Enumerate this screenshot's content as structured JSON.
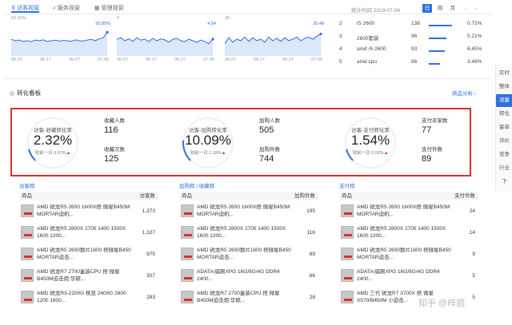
{
  "tabs": [
    {
      "label": "访客视窗",
      "icon": "funnel-icon"
    },
    {
      "label": "服务视窗",
      "icon": "chat-icon"
    },
    {
      "label": "管理视窗",
      "icon": "grid-icon"
    }
  ],
  "header": {
    "stat_time": "统计时间 2019-07-06",
    "periods": [
      "日",
      "周",
      "月"
    ],
    "active_period": "日"
  },
  "mini_charts": [
    {
      "top_label": "60.00%",
      "peak_label": "50.85%",
      "x_ticks": [
        "06-07",
        "06-17",
        "06-27",
        "07-06"
      ],
      "line": [
        0.55,
        0.5,
        0.52,
        0.48,
        0.5,
        0.47,
        0.52,
        0.5,
        0.53,
        0.48,
        0.5,
        0.52,
        0.49,
        0.51,
        0.5,
        0.48,
        0.53,
        0.5,
        0.49,
        0.52,
        0.55,
        0.5,
        0.56,
        0.6,
        0.78
      ]
    },
    {
      "top_label": "6",
      "peak_label": "4.54",
      "x_ticks": [
        "06-07",
        "06-17",
        "06-27",
        "07-06"
      ],
      "line": [
        0.55,
        0.6,
        0.5,
        0.56,
        0.48,
        0.6,
        0.52,
        0.55,
        0.47,
        0.58,
        0.5,
        0.56,
        0.53,
        0.45,
        0.55,
        0.58,
        0.5,
        0.47,
        0.55,
        0.5,
        0.45,
        0.52,
        0.48,
        0.4,
        0.55
      ]
    },
    {
      "top_label": "30",
      "peak_label": "20.48",
      "x_ticks": [
        "06-07",
        "06-17",
        "06-27",
        "07-06"
      ],
      "line": [
        0.4,
        0.6,
        0.45,
        0.55,
        0.5,
        0.62,
        0.48,
        0.6,
        0.5,
        0.55,
        0.45,
        0.62,
        0.5,
        0.58,
        0.48,
        0.6,
        0.5,
        0.55,
        0.62,
        0.5,
        0.58,
        0.62,
        0.55,
        0.65,
        0.72
      ]
    }
  ],
  "ranking": [
    {
      "rank": "2",
      "name": "r5 2600",
      "count": "138",
      "share": "0.72%",
      "fill": 0.72
    },
    {
      "rank": "3",
      "name": "2600套装",
      "count": "96",
      "share": "5.21%",
      "fill": 0.55
    },
    {
      "rank": "4",
      "name": "amd r5 2600",
      "count": "93",
      "share": "6.45%",
      "fill": 0.5
    },
    {
      "rank": "5",
      "name": "amd cpu",
      "count": "86",
      "share": "3.49%",
      "fill": 0.35
    }
  ],
  "section": {
    "title": "转化看板",
    "link": "商品分析 ›"
  },
  "gauges": [
    {
      "label": "访客-收藏转化率",
      "value": "2.32%",
      "sub": "较前一日 0.07%",
      "arrow": "▲",
      "fill": 0.0232,
      "metrics": [
        {
          "label": "收藏人数",
          "value": "116"
        },
        {
          "label": "收藏次数",
          "value": "125"
        }
      ]
    },
    {
      "label": "访客-加购转化率",
      "value": "10.09%",
      "sub": "较前一日 1.18%",
      "arrow": "▲",
      "fill": 0.1009,
      "metrics": [
        {
          "label": "加购人数",
          "value": "505"
        },
        {
          "label": "加购件数",
          "value": "744"
        }
      ]
    },
    {
      "label": "访客-支付转化率",
      "value": "1.54%",
      "sub": "较前一日 0.02%",
      "arrow": "▲",
      "fill": 0.0154,
      "metrics": [
        {
          "label": "支付买家数",
          "value": "77"
        },
        {
          "label": "支付件数",
          "value": "89"
        }
      ]
    }
  ],
  "rail": [
    "实时",
    "整体",
    "流量",
    "转化",
    "客单",
    "评价",
    "竞争",
    "行业",
    "下"
  ],
  "rail_active": "流量",
  "tables": [
    {
      "title": "访客榜",
      "col1": "商品",
      "col2": "访客数",
      "rows": [
        {
          "name": "AMD 锐龙R5 2600 1600X搭 微星B450M MORTAR迫机...",
          "value": "1,373"
        },
        {
          "name": "AMD 锐龙R5 2600X 2700 1400 1500X 1600 1200...",
          "value": "1,327"
        },
        {
          "name": "AMD 锐龙R5 2600散片1600 搭微星B450 MORTAR迫击...",
          "value": "975"
        },
        {
          "name": "AMD 锐龙R7 2700盒装CPU 搭 微星B450M迫击炮 华硕...",
          "value": "307"
        },
        {
          "name": "AMD 锐龙R3-2200G 核显 2400G 2600 1200 1600...",
          "value": "283"
        }
      ]
    },
    {
      "title": "加购榜 | 收藏榜",
      "col1": "商品",
      "col2": "加购件数",
      "rows": [
        {
          "name": "AMD 锐龙R5 2600 1600X搭 微星B450M MORTAR迫机...",
          "value": "195"
        },
        {
          "name": "AMD 锐龙R5 2600X 2700 1400 1500X 1600 1200...",
          "value": "116"
        },
        {
          "name": "AMD 锐龙R5 2600散片1600 搭微星B450 MORTAR迫击...",
          "value": "89"
        },
        {
          "name": "ADATA/威刚XPG 16G/8G/4G DDR4 2400...",
          "value": "66"
        },
        {
          "name": "AMD 锐龙R7 2700盒装CPU 搭 微星B450M迫击炮 华硕...",
          "value": "28"
        }
      ]
    },
    {
      "title": "支付榜",
      "col1": "商品",
      "col2": "支付件数",
      "rows": [
        {
          "name": "AMD 锐龙R5 2600 1600X搭 微星B450M MORTAR迫机...",
          "value": "24"
        },
        {
          "name": "AMD 锐龙R5 2600X 2700 1400 1500X 1600 1200...",
          "value": "14"
        },
        {
          "name": "AMD 锐龙R5 2600散片1600 搭微星B450 MORTAR迫击...",
          "value": "9"
        },
        {
          "name": "ADATA/威刚XPG 16G/8G/4G DDR4 2400...",
          "value": "5"
        },
        {
          "name": "AMD 三代 锐龙R7 3700X 搭 微星X570/B450M 小迫击...",
          "value": "5"
        }
      ]
    }
  ],
  "watermark": "知乎 @梓庭"
}
